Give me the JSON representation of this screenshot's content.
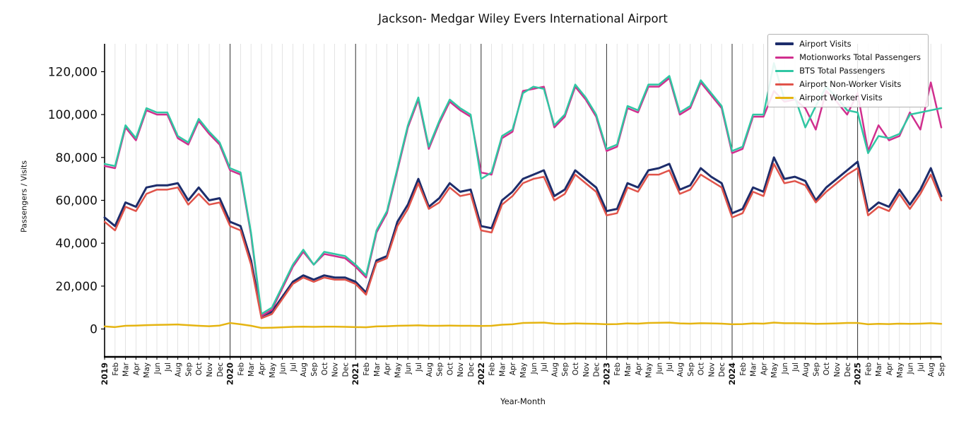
{
  "title": "Jackson- Medgar Wiley Evers International Airport",
  "ylabel": "Passengers / Visits",
  "xlabel": "Year-Month",
  "chart_data": {
    "type": "line",
    "title": "Jackson- Medgar Wiley Evers International Airport",
    "xlabel": "Year-Month",
    "ylabel": "Passengers / Visits",
    "grid": "vertical-monthly",
    "legend_position": "upper right",
    "ylim": [
      -13000,
      133000
    ],
    "y_ticks": [
      0,
      20000,
      40000,
      60000,
      80000,
      100000,
      120000
    ],
    "year_line_indices": [
      12,
      24,
      36,
      48,
      60,
      72
    ],
    "x_labels": [
      "2019",
      "Feb",
      "Mar",
      "Apr",
      "May",
      "Jun",
      "Jul",
      "Aug",
      "Sep",
      "Oct",
      "Nov",
      "Dec",
      "2020",
      "Feb",
      "Mar",
      "Apr",
      "May",
      "Jun",
      "Jul",
      "Aug",
      "Sep",
      "Oct",
      "Nov",
      "Dec",
      "2021",
      "Feb",
      "Mar",
      "Apr",
      "May",
      "Jun",
      "Jul",
      "Aug",
      "Sep",
      "Oct",
      "Nov",
      "Dec",
      "2022",
      "Feb",
      "Mar",
      "Apr",
      "May",
      "Jun",
      "Jul",
      "Aug",
      "Sep",
      "Oct",
      "Nov",
      "Dec",
      "2023",
      "Feb",
      "Mar",
      "Apr",
      "May",
      "Jun",
      "Jul",
      "Aug",
      "Sep",
      "Oct",
      "Nov",
      "Dec",
      "2024",
      "Feb",
      "Mar",
      "Apr",
      "May",
      "Jun",
      "Jul",
      "Aug",
      "Sep",
      "Oct",
      "Nov",
      "Dec",
      "2025",
      "Feb",
      "Mar",
      "Apr",
      "May",
      "Jun",
      "Jul",
      "Aug",
      "Sep"
    ],
    "series": [
      {
        "name": "Airport Visits",
        "color": "#1d2d6b",
        "width": 3,
        "values": [
          52000,
          48000,
          59000,
          57000,
          66000,
          67000,
          67000,
          68000,
          60000,
          66000,
          60000,
          61000,
          50000,
          48000,
          32000,
          6000,
          8000,
          15000,
          22000,
          25000,
          23000,
          25000,
          24000,
          24000,
          22000,
          17000,
          32000,
          34000,
          50000,
          58000,
          70000,
          57000,
          61000,
          68000,
          64000,
          65000,
          48000,
          47000,
          60000,
          64000,
          70000,
          72000,
          74000,
          62000,
          65000,
          74000,
          70000,
          66000,
          55000,
          56000,
          68000,
          66000,
          74000,
          75000,
          77000,
          65000,
          67000,
          75000,
          71000,
          68000,
          54000,
          56000,
          66000,
          64000,
          80000,
          70000,
          71000,
          69000,
          60000,
          66000,
          70000,
          74000,
          78000,
          55000,
          59000,
          57000,
          65000,
          58000,
          65000,
          75000,
          62000
        ]
      },
      {
        "name": "Motionworks Total Passengers",
        "color": "#d02f8e",
        "width": 2.5,
        "values": [
          76000,
          75000,
          94000,
          88000,
          102000,
          100000,
          100000,
          89000,
          86000,
          97000,
          91000,
          86000,
          74000,
          72000,
          44000,
          6000,
          9000,
          19000,
          29000,
          36000,
          30000,
          35000,
          34000,
          33000,
          29000,
          24000,
          45000,
          54000,
          74000,
          94000,
          107000,
          84000,
          96000,
          106000,
          102000,
          99000,
          73000,
          72000,
          89000,
          92000,
          111000,
          112000,
          113000,
          94000,
          99000,
          113000,
          107000,
          99000,
          83000,
          85000,
          103000,
          101000,
          113000,
          113000,
          117000,
          100000,
          103000,
          115000,
          109000,
          103000,
          82000,
          84000,
          99000,
          99000,
          111000,
          106000,
          107000,
          103000,
          93000,
          111000,
          106000,
          100000,
          110000,
          83000,
          95000,
          88000,
          90000,
          101000,
          93000,
          115000,
          94000
        ]
      },
      {
        "name": "BTS Total Passengers",
        "color": "#30c6a3",
        "width": 2.5,
        "values": [
          77000,
          76000,
          95000,
          89000,
          103000,
          101000,
          101000,
          90000,
          87000,
          98000,
          92000,
          87000,
          75000,
          73000,
          45000,
          7000,
          10000,
          20000,
          30000,
          37000,
          30000,
          36000,
          35000,
          34000,
          30000,
          25000,
          46000,
          55000,
          75000,
          95000,
          108000,
          85000,
          97000,
          107000,
          103000,
          100000,
          70000,
          73000,
          90000,
          93000,
          110000,
          113000,
          112000,
          95000,
          100000,
          114000,
          108000,
          100000,
          84000,
          86000,
          104000,
          102000,
          114000,
          114000,
          118000,
          101000,
          104000,
          116000,
          110000,
          104000,
          83000,
          85000,
          100000,
          100000,
          124000,
          107000,
          108000,
          94000,
          104000,
          113000,
          108000,
          102000,
          101000,
          82000,
          90000,
          89000,
          91000,
          100000,
          101000,
          102000,
          103000
        ]
      },
      {
        "name": "Airport Non-Worker Visits",
        "color": "#e0534a",
        "width": 2.5,
        "values": [
          50000,
          46000,
          57000,
          55000,
          63000,
          65000,
          65000,
          66000,
          58000,
          63000,
          58000,
          59000,
          48000,
          46000,
          30000,
          5000,
          7000,
          14000,
          21000,
          24000,
          22000,
          24000,
          23000,
          23000,
          21000,
          16000,
          31000,
          33000,
          48000,
          56000,
          68000,
          56000,
          59000,
          66000,
          62000,
          63000,
          46000,
          45000,
          58000,
          62000,
          68000,
          70000,
          71000,
          60000,
          63000,
          72000,
          68000,
          64000,
          53000,
          54000,
          66000,
          64000,
          72000,
          72000,
          74000,
          63000,
          65000,
          72000,
          69000,
          66000,
          52000,
          54000,
          64000,
          62000,
          77000,
          68000,
          69000,
          67000,
          59000,
          64000,
          68000,
          72000,
          75000,
          53000,
          57000,
          55000,
          63000,
          56000,
          63000,
          72000,
          60000
        ]
      },
      {
        "name": "Airport Worker Visits",
        "color": "#e5b411",
        "width": 2.5,
        "values": [
          1200,
          900,
          1500,
          1600,
          1800,
          1900,
          2000,
          2100,
          1800,
          1500,
          1300,
          1600,
          2800,
          2200,
          1500,
          500,
          600,
          800,
          1000,
          1100,
          1000,
          1100,
          1100,
          1000,
          900,
          800,
          1200,
          1300,
          1500,
          1600,
          1700,
          1500,
          1500,
          1600,
          1500,
          1500,
          1400,
          1500,
          2000,
          2200,
          2800,
          2900,
          3000,
          2500,
          2400,
          2600,
          2500,
          2400,
          2200,
          2300,
          2600,
          2500,
          2800,
          2900,
          3000,
          2600,
          2500,
          2700,
          2600,
          2500,
          2200,
          2300,
          2600,
          2500,
          3000,
          2700,
          2700,
          2600,
          2400,
          2500,
          2600,
          2800,
          2800,
          2200,
          2400,
          2300,
          2500,
          2400,
          2500,
          2700,
          2400
        ]
      }
    ]
  }
}
